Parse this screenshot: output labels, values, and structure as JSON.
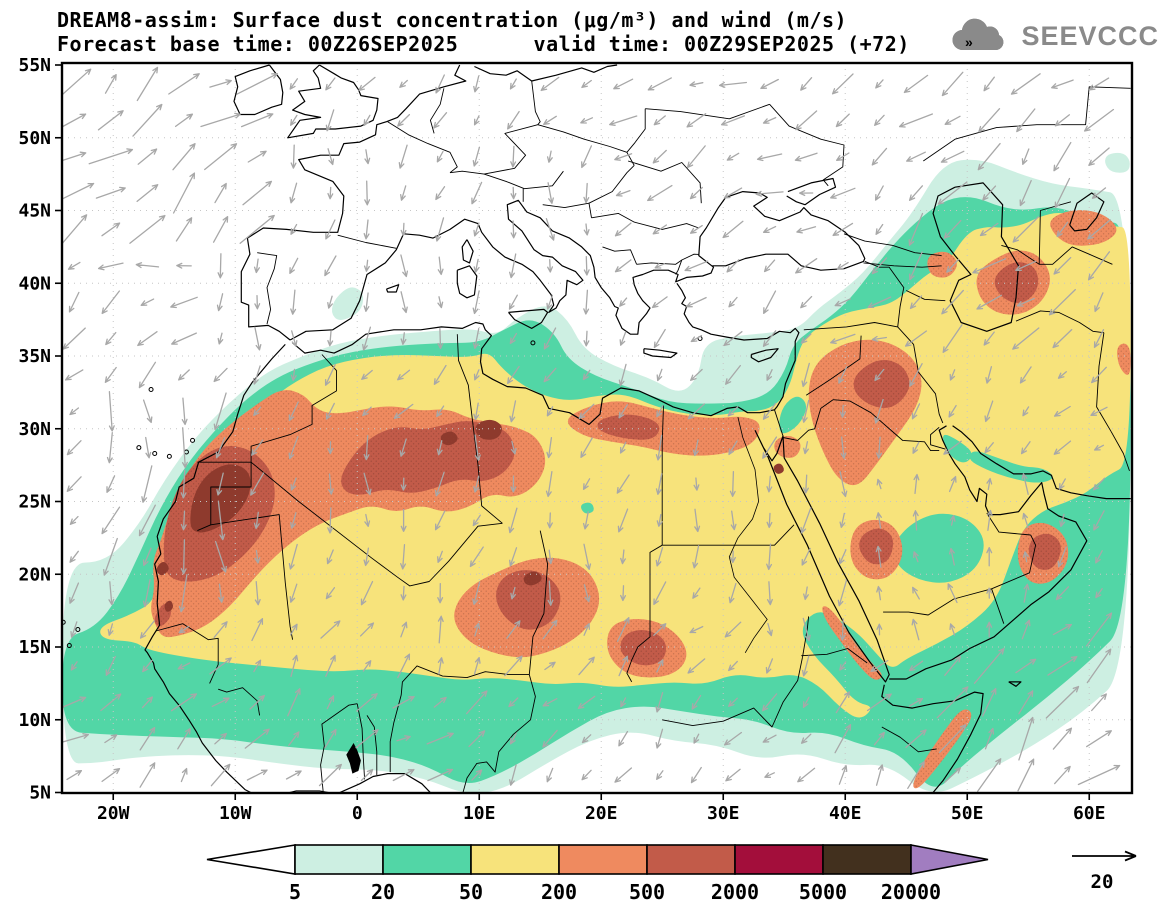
{
  "header": {
    "title": "DREAM8-assim: Surface dust concentration (μg/m³) and wind (m/s)",
    "subtitle": "Forecast base time: 00Z26SEP2025      valid time: 00Z29SEP2025 (+72)"
  },
  "logo": {
    "text": "SEEVCCC",
    "icon": "cloud-arrows-icon",
    "color": "#8a8a8a"
  },
  "axes": {
    "lat_ticks": [
      {
        "label": "55N",
        "deg": 55
      },
      {
        "label": "50N",
        "deg": 50
      },
      {
        "label": "45N",
        "deg": 45
      },
      {
        "label": "40N",
        "deg": 40
      },
      {
        "label": "35N",
        "deg": 35
      },
      {
        "label": "30N",
        "deg": 30
      },
      {
        "label": "25N",
        "deg": 25
      },
      {
        "label": "20N",
        "deg": 20
      },
      {
        "label": "15N",
        "deg": 15
      },
      {
        "label": "10N",
        "deg": 10
      },
      {
        "label": "5N",
        "deg": 5
      }
    ],
    "lon_ticks": [
      {
        "label": "20W",
        "deg": -20
      },
      {
        "label": "10W",
        "deg": -10
      },
      {
        "label": "0",
        "deg": 0
      },
      {
        "label": "10E",
        "deg": 10
      },
      {
        "label": "20E",
        "deg": 20
      },
      {
        "label": "30E",
        "deg": 30
      },
      {
        "label": "40E",
        "deg": 40
      },
      {
        "label": "50E",
        "deg": 50
      },
      {
        "label": "60E",
        "deg": 60
      }
    ]
  },
  "legend": {
    "values": [
      "5",
      "20",
      "50",
      "200",
      "500",
      "2000",
      "5000",
      "20000"
    ],
    "band_colors": [
      "#ffffff",
      "#cdefe2",
      "#52d6a6",
      "#f7e37b",
      "#ef8a5f",
      "#c25b49",
      "#a30e3b",
      "#42301e",
      "#a17dc0"
    ]
  },
  "wind_reference": {
    "speed": "20"
  },
  "map": {
    "colors": {
      "coast": "#000000",
      "border": "#000000",
      "grid": "#c6c6c6",
      "arrow": "#a8a8a8",
      "level1": "#cdefe2",
      "level2": "#52d6a6",
      "level3": "#f7e37b",
      "level4": "#ef8a5f",
      "level5": "#c25b49",
      "level6": "#8e3a2d",
      "lake": "#000000",
      "stipple": "rgba(0,0,0,0.18)"
    },
    "wind_regions": [
      {
        "name": "ne-atlantic",
        "lon": [
          -25,
          -8
        ],
        "lat": [
          43,
          55.5
        ],
        "dir": 40,
        "strength": 0.95
      },
      {
        "name": "w-atlantic",
        "lon": [
          -25,
          -12
        ],
        "lat": [
          40,
          43
        ],
        "dir": 185,
        "strength": 0.5
      },
      {
        "name": "sw-atlantic",
        "lon": [
          -25,
          -14
        ],
        "lat": [
          33,
          40
        ],
        "dir": 225,
        "strength": 0.55
      },
      {
        "name": "canary-coast",
        "lon": [
          -21,
          -9
        ],
        "lat": [
          18,
          33
        ],
        "dir": 262,
        "strength": 0.8
      },
      {
        "name": "guinea-monsoon",
        "lon": [
          -25,
          12
        ],
        "lat": [
          4,
          12.5
        ],
        "dir": 42,
        "strength": 0.55
      },
      {
        "name": "sahel",
        "lon": [
          -14,
          26
        ],
        "lat": [
          12.5,
          17.5
        ],
        "dir": 60,
        "strength": 0.45
      },
      {
        "name": "sahara",
        "lon": [
          -10,
          26
        ],
        "lat": [
          17.5,
          30
        ],
        "dir": 260,
        "strength": 0.42
      },
      {
        "name": "maghreb",
        "lon": [
          -10,
          16
        ],
        "lat": [
          30,
          36
        ],
        "dir": 240,
        "strength": 0.35
      },
      {
        "name": "west-med-europe",
        "lon": [
          -12,
          20
        ],
        "lat": [
          36,
          50
        ],
        "dir": 262,
        "strength": 0.38
      },
      {
        "name": "east-europe",
        "lon": [
          20,
          40
        ],
        "lat": [
          44,
          55.5
        ],
        "dir": 205,
        "strength": 0.5
      },
      {
        "name": "anatolia-caucasus",
        "lon": [
          25,
          45
        ],
        "lat": [
          36,
          44
        ],
        "dir": 215,
        "strength": 0.42
      },
      {
        "name": "central-asia",
        "lon": [
          45,
          64
        ],
        "lat": [
          36,
          55.5
        ],
        "dir": 225,
        "strength": 0.7
      },
      {
        "name": "levant-iraq",
        "lon": [
          28,
          48
        ],
        "lat": [
          28,
          36
        ],
        "dir": 250,
        "strength": 0.42
      },
      {
        "name": "egypt-libya",
        "lon": [
          14,
          33
        ],
        "lat": [
          18,
          30
        ],
        "dir": 255,
        "strength": 0.4
      },
      {
        "name": "red-sea",
        "lon": [
          33,
          40
        ],
        "lat": [
          14,
          28
        ],
        "dir": 268,
        "strength": 0.45
      },
      {
        "name": "arabia",
        "lon": [
          40,
          56
        ],
        "lat": [
          16,
          28
        ],
        "dir": 95,
        "strength": 0.3
      },
      {
        "name": "arabian-sea-monsoon",
        "lon": [
          48,
          64
        ],
        "lat": [
          4,
          17
        ],
        "dir": 48,
        "strength": 0.95
      },
      {
        "name": "horn-of-africa",
        "lon": [
          38,
          50
        ],
        "lat": [
          4,
          12
        ],
        "dir": 55,
        "strength": 0.6
      },
      {
        "name": "default",
        "lon": [
          -25,
          64
        ],
        "lat": [
          4,
          55.5
        ],
        "dir": 230,
        "strength": 0.32
      }
    ]
  },
  "chart_data": {
    "type": "filled-contour-map",
    "title": "DREAM8-assim: Surface dust concentration (μg/m³) and wind (m/s)",
    "model": "DREAM8-assim",
    "base_time": "00Z26SEP2025",
    "valid_time": "00Z29SEP2025",
    "lead_hours": 72,
    "variable": "surface dust concentration",
    "units": "μg/m³",
    "overlay": "wind vectors (m/s)",
    "wind_reference_speed": 20,
    "contour_levels": [
      5,
      20,
      50,
      200,
      500,
      2000,
      5000,
      20000
    ],
    "lon_range": [
      -24.2,
      63.4
    ],
    "lat_range": [
      4.6,
      55
    ],
    "grid_spacing_deg": {
      "lat_lines": 5,
      "lon_lines": 10
    },
    "high_dust_regions": [
      "Western Sahara / Mauritania core 2000-5000",
      "NW Libya / S Tunisia spot 2000-5000",
      "Central Algeria belt 500-2000",
      "Niger / Chad 500-2000",
      "Sudan 500-2000",
      "N Egypt / NE Libya 500-2000",
      "Iraq / N Saudi Arabia 500-2000",
      "Central Saudi Arabia 500-2000",
      "Interior Oman 500-2000",
      "East of Caspian (Turkmenistan) 500-2000",
      "Broad 50-200 field across Sahara, Arabia, Middle East"
    ]
  }
}
